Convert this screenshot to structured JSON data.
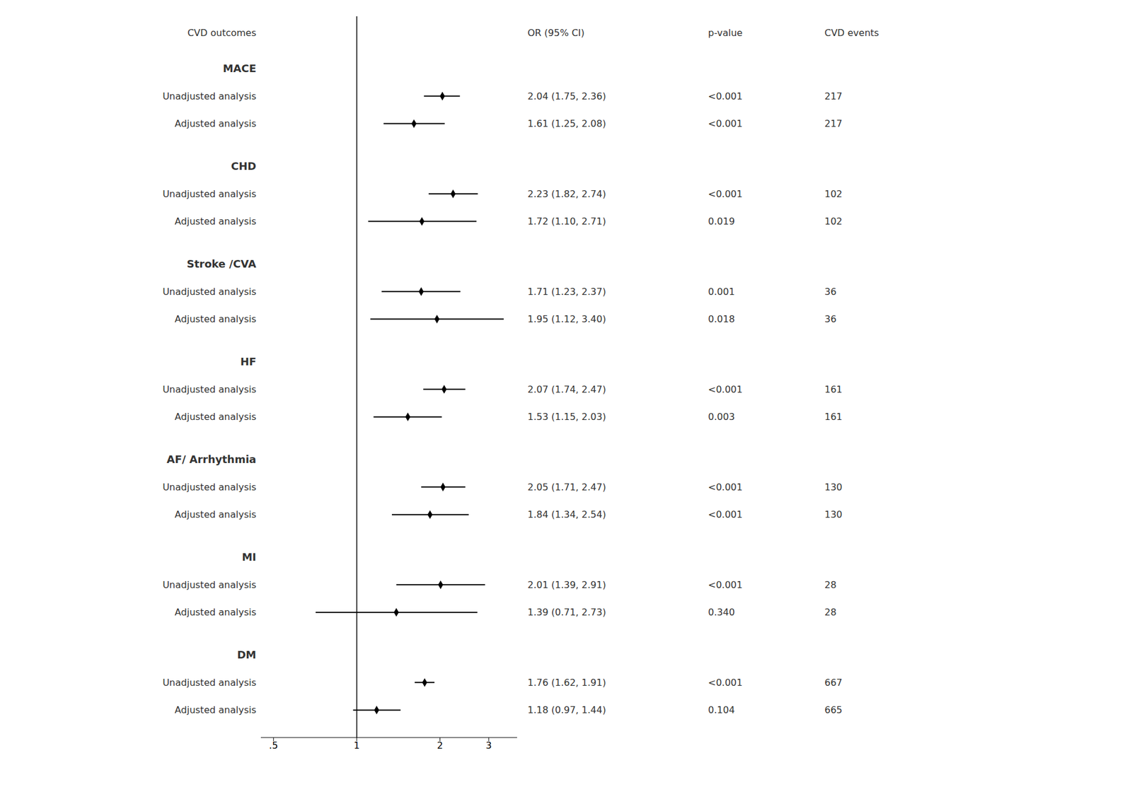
{
  "chart_data": {
    "type": "forest",
    "columns": [
      "CVD outcomes",
      "OR (95% CI)",
      "p-value",
      "CVD events"
    ],
    "groups": [
      {
        "label": "MACE",
        "rows": [
          {
            "label": "Unadjusted analysis",
            "value": 2.04,
            "ci_low": 1.75,
            "ci_high": 2.36,
            "value_label": "2.04 (1.75, 2.36)",
            "p_value": "<0.001",
            "events": 217
          },
          {
            "label": "Adjusted analysis",
            "value": 1.61,
            "ci_low": 1.25,
            "ci_high": 2.08,
            "value_label": "1.61 (1.25, 2.08)",
            "p_value": "<0.001",
            "events": 217
          }
        ]
      },
      {
        "label": "CHD",
        "rows": [
          {
            "label": "Unadjusted analysis",
            "value": 2.23,
            "ci_low": 1.82,
            "ci_high": 2.74,
            "value_label": "2.23 (1.82, 2.74)",
            "p_value": "<0.001",
            "events": 102
          },
          {
            "label": "Adjusted analysis",
            "value": 1.72,
            "ci_low": 1.1,
            "ci_high": 2.71,
            "value_label": "1.72 (1.10, 2.71)",
            "p_value": "0.019",
            "events": 102
          }
        ]
      },
      {
        "label": "Stroke /CVA",
        "rows": [
          {
            "label": "Unadjusted analysis",
            "value": 1.71,
            "ci_low": 1.23,
            "ci_high": 2.37,
            "value_label": "1.71 (1.23, 2.37)",
            "p_value": "0.001",
            "events": 36
          },
          {
            "label": "Adjusted analysis",
            "value": 1.95,
            "ci_low": 1.12,
            "ci_high": 3.4,
            "value_label": "1.95 (1.12, 3.40)",
            "p_value": "0.018",
            "events": 36
          }
        ]
      },
      {
        "label": "HF",
        "rows": [
          {
            "label": "Unadjusted analysis",
            "value": 2.07,
            "ci_low": 1.74,
            "ci_high": 2.47,
            "value_label": "2.07 (1.74, 2.47)",
            "p_value": "<0.001",
            "events": 161
          },
          {
            "label": "Adjusted analysis",
            "value": 1.53,
            "ci_low": 1.15,
            "ci_high": 2.03,
            "value_label": "1.53 (1.15, 2.03)",
            "p_value": "0.003",
            "events": 161
          }
        ]
      },
      {
        "label": "AF/ Arrhythmia",
        "rows": [
          {
            "label": "Unadjusted analysis",
            "value": 2.05,
            "ci_low": 1.71,
            "ci_high": 2.47,
            "value_label": "2.05 (1.71, 2.47)",
            "p_value": "<0.001",
            "events": 130
          },
          {
            "label": "Adjusted analysis",
            "value": 1.84,
            "ci_low": 1.34,
            "ci_high": 2.54,
            "value_label": "1.84 (1.34, 2.54)",
            "p_value": "<0.001",
            "events": 130
          }
        ]
      },
      {
        "label": "MI",
        "rows": [
          {
            "label": "Unadjusted analysis",
            "value": 2.01,
            "ci_low": 1.39,
            "ci_high": 2.91,
            "value_label": "2.01 (1.39, 2.91)",
            "p_value": "<0.001",
            "events": 28
          },
          {
            "label": "Adjusted analysis",
            "value": 1.39,
            "ci_low": 0.71,
            "ci_high": 2.73,
            "value_label": "1.39 (0.71, 2.73)",
            "p_value": "0.340",
            "events": 28
          }
        ]
      },
      {
        "label": "DM",
        "rows": [
          {
            "label": "Unadjusted analysis",
            "value": 1.76,
            "ci_low": 1.62,
            "ci_high": 1.91,
            "value_label": "1.76 (1.62, 1.91)",
            "p_value": "<0.001",
            "events": 667
          },
          {
            "label": "Adjusted analysis",
            "value": 1.18,
            "ci_low": 0.97,
            "ci_high": 1.44,
            "value_label": "1.18 (0.97, 1.44)",
            "p_value": "0.104",
            "events": 665
          }
        ]
      }
    ],
    "xlim": [
      0.45,
      3.8
    ],
    "xticks": [
      {
        "value": 0.5,
        "label": ".5"
      },
      1,
      2,
      3
    ],
    "log": "x",
    "reference_line": 1,
    "color": "black"
  }
}
